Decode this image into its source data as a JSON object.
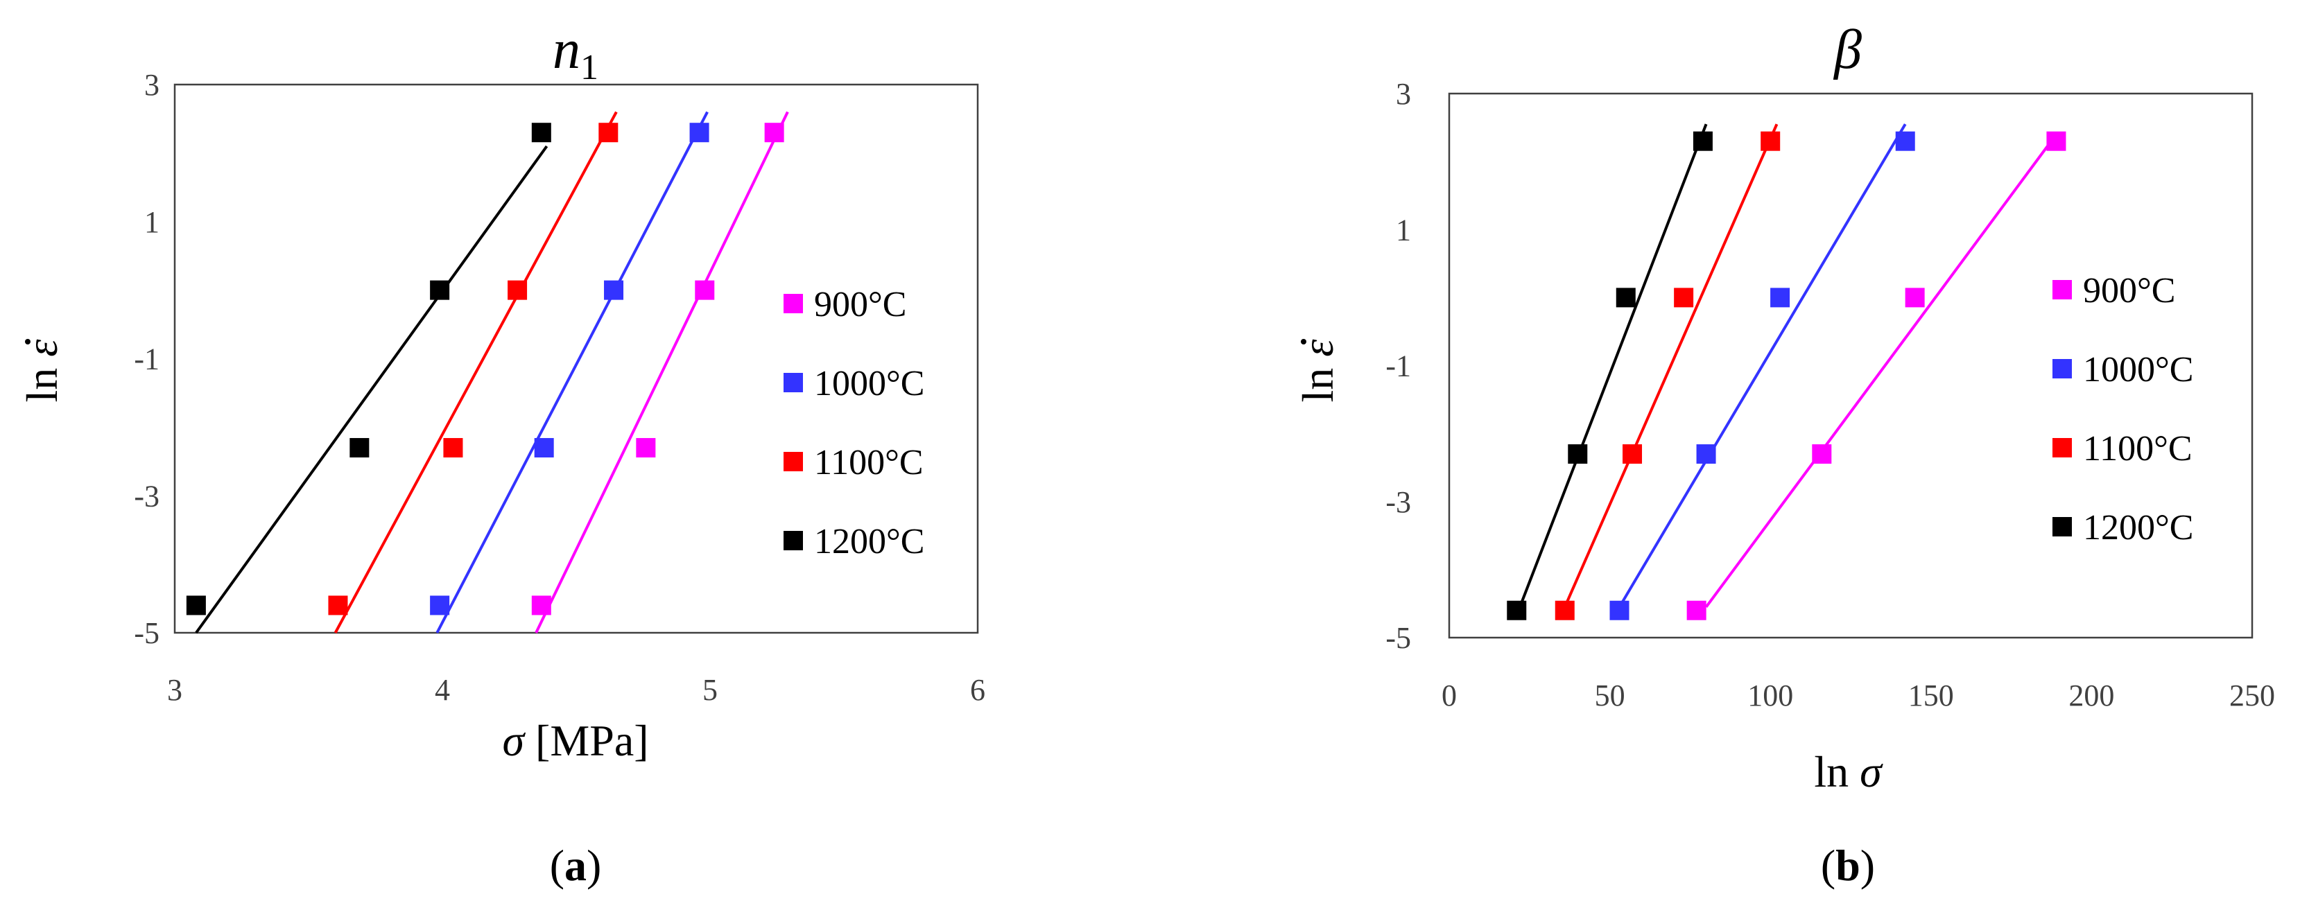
{
  "colors": {
    "900": "#ff00ff",
    "1000": "#3333ff",
    "1100": "#ff0000",
    "1200": "#000000"
  },
  "chart_data": [
    {
      "type": "scatter",
      "title": "n",
      "title_sub": "1",
      "xlabel_sym": "σ",
      "xlabel_rest": " [MPa]",
      "ylabel_pre": "ln ",
      "ylabel_sym": "ε",
      "xlim": [
        3,
        6
      ],
      "ylim": [
        -5,
        3
      ],
      "xticks": [
        3,
        4,
        5,
        6
      ],
      "yticks": [
        3,
        1,
        -1,
        -3,
        -5
      ],
      "grid": false,
      "legend": "right",
      "series": [
        {
          "name": "900°C",
          "color_key": "900",
          "x": [
            4.37,
            4.76,
            4.98,
            5.24
          ],
          "y": [
            -4.6,
            -2.3,
            0.0,
            2.3
          ],
          "fit": [
            [
              4.35,
              -5.0
            ],
            [
              5.29,
              2.6
            ]
          ]
        },
        {
          "name": "1000°C",
          "color_key": "1000",
          "x": [
            3.99,
            4.38,
            4.64,
            4.96
          ],
          "y": [
            -4.6,
            -2.3,
            0.0,
            2.3
          ],
          "fit": [
            [
              3.98,
              -5.0
            ],
            [
              4.99,
              2.6
            ]
          ]
        },
        {
          "name": "1100°C",
          "color_key": "1100",
          "x": [
            3.61,
            4.04,
            4.28,
            4.62
          ],
          "y": [
            -4.6,
            -2.3,
            0.0,
            2.3
          ],
          "fit": [
            [
              3.6,
              -5.0
            ],
            [
              4.65,
              2.6
            ]
          ]
        },
        {
          "name": "1200°C",
          "color_key": "1200",
          "x": [
            3.08,
            3.69,
            3.99,
            4.37
          ],
          "y": [
            -4.6,
            -2.3,
            0.0,
            2.3
          ],
          "fit": [
            [
              3.08,
              -5.0
            ],
            [
              4.39,
              2.1
            ]
          ]
        }
      ],
      "panel_label": "a"
    },
    {
      "type": "scatter",
      "title": "β",
      "title_sub": "",
      "xlabel_sym": "σ",
      "xlabel_rest": "",
      "xlabel_pre": "ln ",
      "ylabel_pre": "ln ",
      "ylabel_sym": "ε",
      "xlim": [
        0,
        250
      ],
      "ylim": [
        -5,
        3
      ],
      "xticks": [
        0,
        50,
        100,
        150,
        200,
        250
      ],
      "yticks": [
        3,
        1,
        -1,
        -3,
        -5
      ],
      "grid": false,
      "legend": "right",
      "series": [
        {
          "name": "900°C",
          "color_key": "900",
          "x": [
            77,
            116,
            145,
            189
          ],
          "y": [
            -4.6,
            -2.3,
            0.0,
            2.3
          ],
          "fit": [
            [
              80,
              -4.55
            ],
            [
              189,
              2.4
            ]
          ]
        },
        {
          "name": "1000°C",
          "color_key": "1000",
          "x": [
            53,
            80,
            103,
            142
          ],
          "y": [
            -4.6,
            -2.3,
            0.0,
            2.3
          ],
          "fit": [
            [
              53,
              -4.55
            ],
            [
              142,
              2.55
            ]
          ]
        },
        {
          "name": "1100°C",
          "color_key": "1100",
          "x": [
            36,
            57,
            73,
            100
          ],
          "y": [
            -4.6,
            -2.3,
            0.0,
            2.3
          ],
          "fit": [
            [
              36,
              -4.55
            ],
            [
              102,
              2.55
            ]
          ]
        },
        {
          "name": "1200°C",
          "color_key": "1200",
          "x": [
            21,
            40,
            55,
            79
          ],
          "y": [
            -4.6,
            -2.3,
            0.0,
            2.3
          ],
          "fit": [
            [
              22,
              -4.55
            ],
            [
              80,
              2.55
            ]
          ]
        }
      ],
      "panel_label": "b"
    }
  ]
}
